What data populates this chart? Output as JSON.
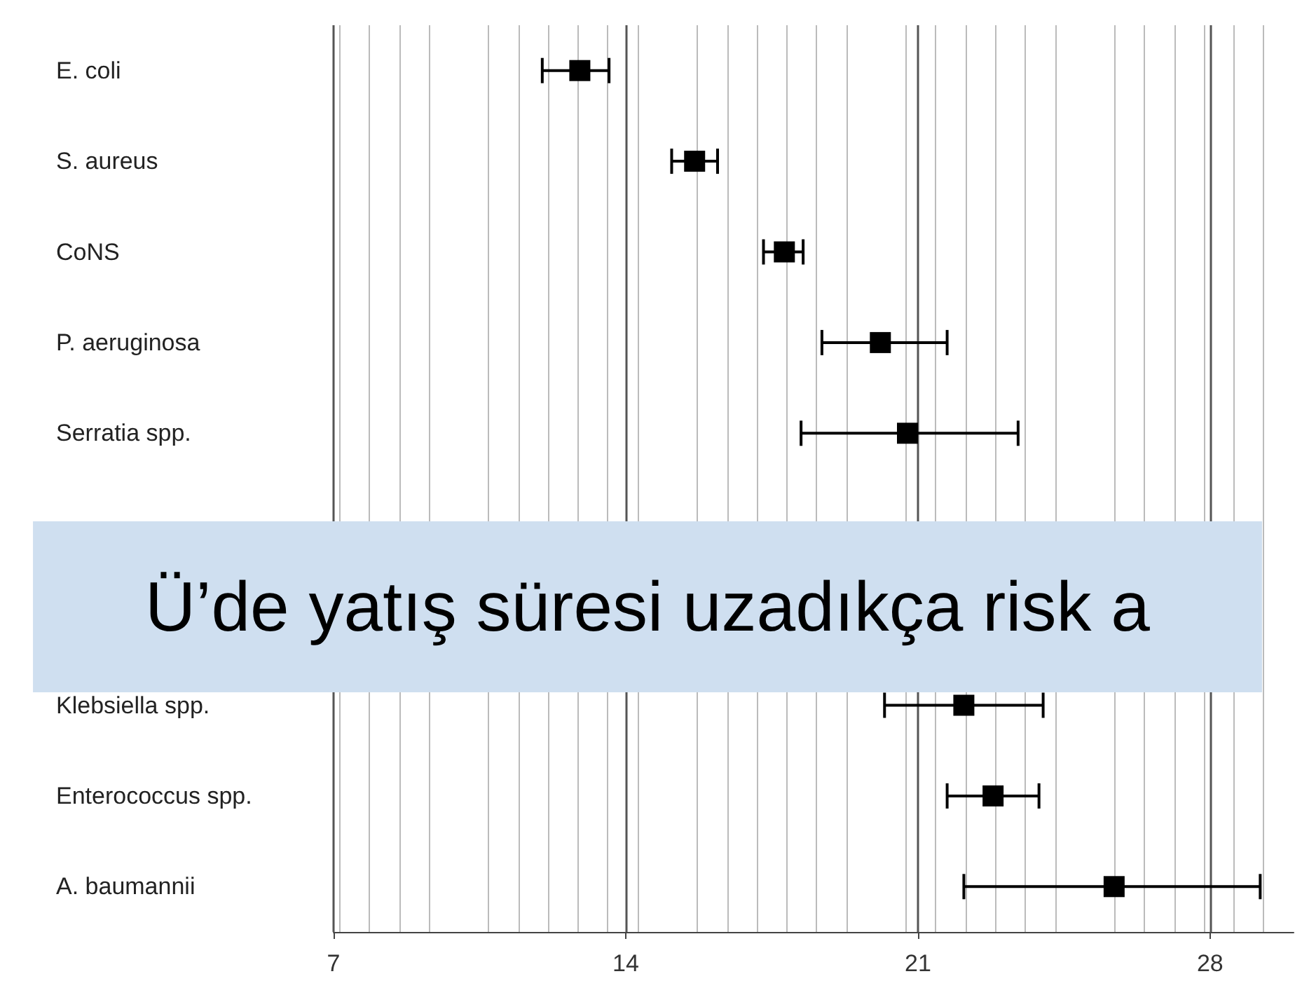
{
  "chart_data": {
    "type": "scatter",
    "title": "Ü’de yatış süresi uzadıkça risk a",
    "categories": [
      "E. coli",
      "S. aureus",
      "CoNS",
      "P. aeruginosa",
      "Serratia spp.",
      null,
      null,
      "Klebsiella spp.",
      "Enterococcus spp.",
      "A. baumannii"
    ],
    "values": [
      12.9,
      15.65,
      17.8,
      20.1,
      20.75,
      null,
      null,
      22.1,
      22.8,
      25.7
    ],
    "errors": [
      [
        12.0,
        13.6
      ],
      [
        15.1,
        16.2
      ],
      [
        17.3,
        18.25
      ],
      [
        18.7,
        21.7
      ],
      [
        18.2,
        23.4
      ],
      null,
      null,
      [
        20.2,
        24.0
      ],
      [
        21.7,
        23.9
      ],
      [
        22.1,
        29.2
      ]
    ],
    "color": "#000000",
    "marker": "square",
    "orientation": "horizontal",
    "xlim": [
      7,
      30
    ],
    "xticks": [
      7,
      14,
      21,
      28
    ],
    "grid": "x"
  }
}
